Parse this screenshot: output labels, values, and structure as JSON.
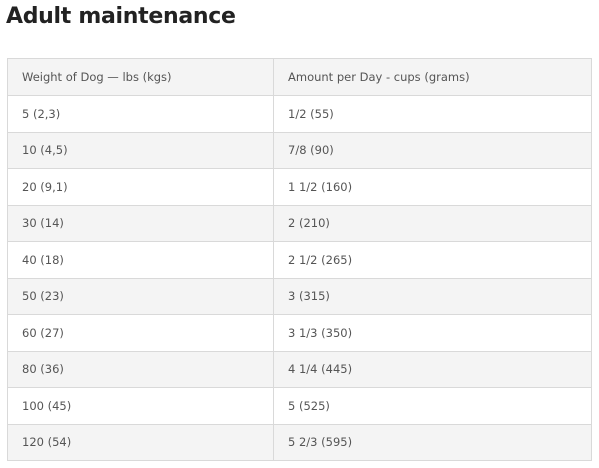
{
  "section_title": "Adult maintenance",
  "table": {
    "headers": [
      "Weight of Dog — lbs (kgs)",
      "Amount per Day - cups (grams)"
    ],
    "rows": [
      [
        "5 (2,3)",
        "1/2 (55)"
      ],
      [
        "10 (4,5)",
        "7/8 (90)"
      ],
      [
        "20 (9,1)",
        "1 1/2 (160)"
      ],
      [
        "30 (14)",
        "2 (210)"
      ],
      [
        "40 (18)",
        "2 1/2 (265)"
      ],
      [
        "50 (23)",
        "3 (315)"
      ],
      [
        "60 (27)",
        "3 1/3 (350)"
      ],
      [
        "80 (36)",
        "4 1/4 (445)"
      ],
      [
        "100 (45)",
        "5 (525)"
      ],
      [
        "120 (54)",
        "5 2/3 (595)"
      ]
    ]
  }
}
